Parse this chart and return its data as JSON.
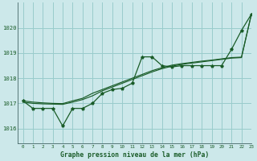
{
  "title": "Graphe pression niveau de la mer (hPa)",
  "background_color": "#cce8ea",
  "grid_color": "#99cccc",
  "line_color": "#1a5c28",
  "xlim": [
    -0.5,
    23
  ],
  "ylim": [
    1015.4,
    1021.0
  ],
  "yticks": [
    1016,
    1017,
    1018,
    1019,
    1020
  ],
  "xticks": [
    0,
    1,
    2,
    3,
    4,
    5,
    6,
    7,
    8,
    9,
    10,
    11,
    12,
    13,
    14,
    15,
    16,
    17,
    18,
    19,
    20,
    21,
    22,
    23
  ],
  "series1": [
    1017.1,
    1016.8,
    1016.8,
    1016.8,
    1016.1,
    1016.8,
    1016.8,
    1017.0,
    1017.4,
    1017.55,
    1017.6,
    1017.8,
    1018.85,
    1018.85,
    1018.5,
    1018.45,
    1018.5,
    1018.5,
    1018.5,
    1018.5,
    1018.5,
    1019.15,
    1019.9,
    1020.55
  ],
  "series2": [
    1017.05,
    1017.0,
    1016.98,
    1016.97,
    1016.96,
    1017.05,
    1017.15,
    1017.3,
    1017.5,
    1017.65,
    1017.8,
    1017.95,
    1018.1,
    1018.25,
    1018.38,
    1018.48,
    1018.55,
    1018.6,
    1018.65,
    1018.7,
    1018.75,
    1018.8,
    1018.82,
    1020.55
  ],
  "series3": [
    1017.1,
    1017.05,
    1017.02,
    1017.0,
    1016.99,
    1017.1,
    1017.2,
    1017.4,
    1017.55,
    1017.7,
    1017.85,
    1018.0,
    1018.15,
    1018.3,
    1018.42,
    1018.52,
    1018.58,
    1018.63,
    1018.68,
    1018.72,
    1018.77,
    1018.82,
    1018.84,
    1020.55
  ]
}
